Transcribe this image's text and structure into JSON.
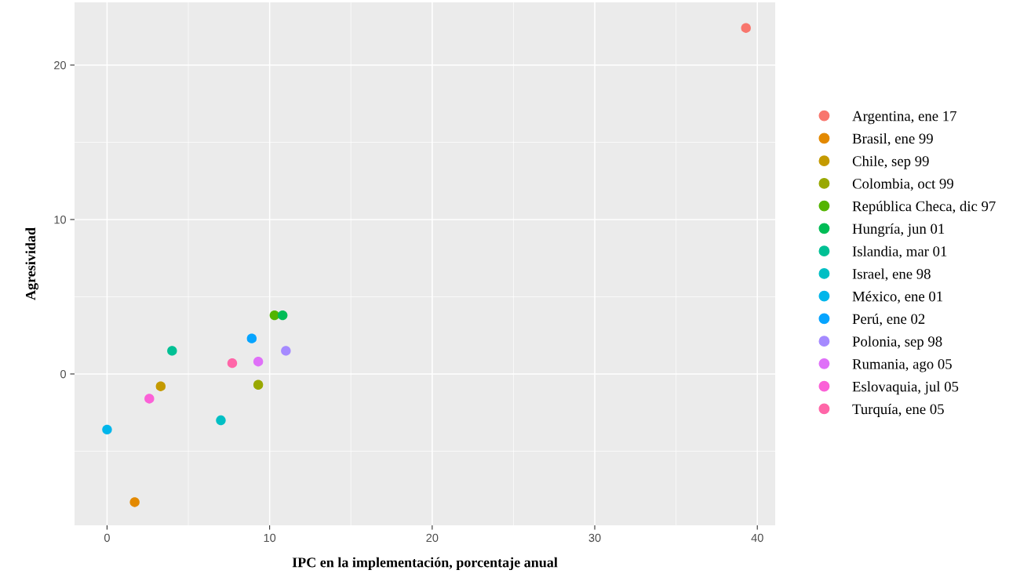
{
  "chart_data": {
    "type": "scatter",
    "xlabel": "IPC en la implementación, porcentaje anual",
    "ylabel": "Agresividad",
    "xlim": [
      -2,
      41.1
    ],
    "ylim": [
      -9.8,
      24.06
    ],
    "xticks": [
      0,
      10,
      20,
      30,
      40
    ],
    "yticks": [
      0,
      10,
      20
    ],
    "grid": true,
    "legend": "right",
    "marker": "circle",
    "series": [
      {
        "name": "Argentina, ene 17",
        "color": "#f8766d",
        "x": [
          39.3
        ],
        "values": [
          22.4
        ]
      },
      {
        "name": "Brasil, ene 99",
        "color": "#e38900",
        "x": [
          1.7
        ],
        "values": [
          -8.3
        ]
      },
      {
        "name": "Chile, sep 99",
        "color": "#c49a00",
        "x": [
          3.3
        ],
        "values": [
          -0.8
        ]
      },
      {
        "name": "Colombia, oct 99",
        "color": "#99a800",
        "x": [
          9.3
        ],
        "values": [
          -0.7
        ]
      },
      {
        "name": "República Checa, dic 97",
        "color": "#53b400",
        "x": [
          10.3
        ],
        "values": [
          3.8
        ]
      },
      {
        "name": "Hungría, jun 01",
        "color": "#00bc56",
        "x": [
          10.8
        ],
        "values": [
          3.8
        ]
      },
      {
        "name": "Islandia, mar 01",
        "color": "#00c094",
        "x": [
          4.0
        ],
        "values": [
          1.5
        ]
      },
      {
        "name": "Israel, ene 98",
        "color": "#00bfc4",
        "x": [
          7.0
        ],
        "values": [
          -3.0
        ]
      },
      {
        "name": "México, ene 01",
        "color": "#00b6eb",
        "x": [
          0.0
        ],
        "values": [
          -3.6
        ]
      },
      {
        "name": "Perú, ene 02",
        "color": "#06a4ff",
        "x": [
          8.9
        ],
        "values": [
          2.3
        ]
      },
      {
        "name": "Polonia, sep 98",
        "color": "#a58aff",
        "x": [
          11.0
        ],
        "values": [
          1.5
        ]
      },
      {
        "name": "Rumania, ago 05",
        "color": "#df70f8",
        "x": [
          9.3
        ],
        "values": [
          0.8
        ]
      },
      {
        "name": "Eslovaquia, jul 05",
        "color": "#fb61d7",
        "x": [
          2.6
        ],
        "values": [
          -1.6
        ]
      },
      {
        "name": "Turquía, ene 05",
        "color": "#ff66a8",
        "x": [
          7.7
        ],
        "values": [
          0.7
        ]
      }
    ]
  }
}
